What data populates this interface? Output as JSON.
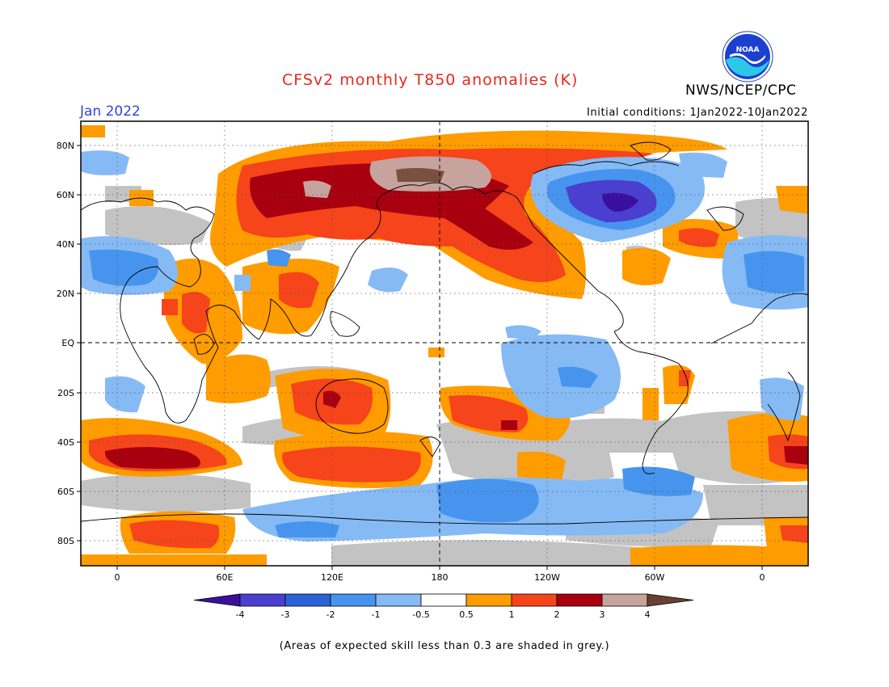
{
  "header": {
    "title": "CFSv2 monthly T850 anomalies (K)",
    "month": "Jan 2022",
    "agency": "NWS/NCEP/CPC",
    "logo_text": "NOAA",
    "initial_conditions": "Initial conditions: 1Jan2022-10Jan2022"
  },
  "axes": {
    "lat_ticks": [
      "80N",
      "60N",
      "40N",
      "20N",
      "EQ",
      "20S",
      "40S",
      "60S",
      "80S"
    ],
    "lon_ticks": [
      "0",
      "60E",
      "120E",
      "180",
      "120W",
      "60W",
      "0"
    ]
  },
  "colorbar": {
    "labels": [
      "-4",
      "-3",
      "-2",
      "-1",
      "-0.5",
      "0.5",
      "1",
      "2",
      "3",
      "4"
    ],
    "colors": [
      "#3a0f9e",
      "#4b3fcf",
      "#2a63d6",
      "#4794ee",
      "#86baf5",
      "#ffffff",
      "#ff9c00",
      "#f6441b",
      "#a8000f",
      "#c6a39c",
      "#6a4032"
    ]
  },
  "footnote": "(Areas of expected skill less than 0.3 are shaded in grey.)",
  "map_colors": {
    "grey": "#c3c3c3",
    "orange": "#ff9c00",
    "red": "#f6441b",
    "darkred": "#a8000f",
    "tan": "#c6a39c",
    "brown": "#7a5040",
    "lightblue": "#86baf5",
    "blue": "#4794ee",
    "medblue": "#2a63d6",
    "indigo": "#4b3fcf",
    "purple": "#3a0f9e"
  }
}
